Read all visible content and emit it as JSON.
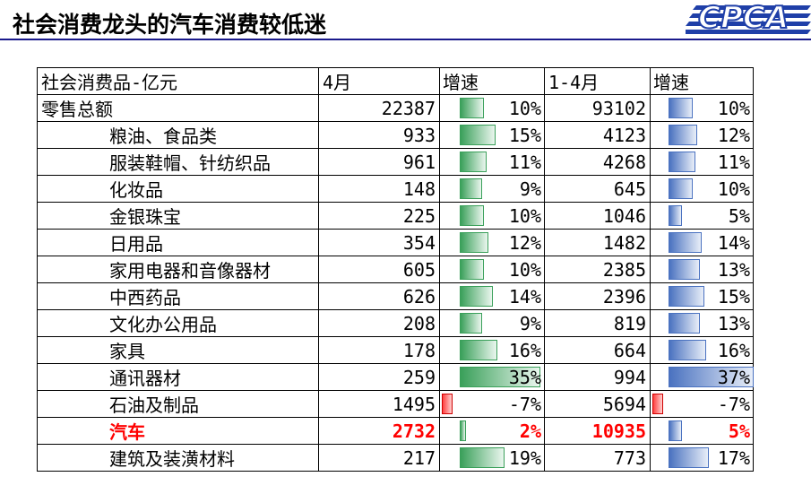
{
  "title": "社会消费龙头的汽车消费较低迷",
  "logo_text": "CPCA",
  "table": {
    "headers": [
      "社会消费品-亿元",
      "4月",
      "增速",
      "1-4月",
      "增速"
    ],
    "rows": [
      {
        "name": "零售总额",
        "apr": "22387",
        "apr_rate": "10%",
        "ytd": "93102",
        "ytd_rate": "10%",
        "apr_rate_v": 10,
        "ytd_rate_v": 10
      },
      {
        "name": "粮油、食品类",
        "apr": "933",
        "apr_rate": "15%",
        "ytd": "4123",
        "ytd_rate": "12%",
        "apr_rate_v": 15,
        "ytd_rate_v": 12
      },
      {
        "name": "服装鞋帽、针纺织品",
        "apr": "961",
        "apr_rate": "11%",
        "ytd": "4268",
        "ytd_rate": "11%",
        "apr_rate_v": 11,
        "ytd_rate_v": 11
      },
      {
        "name": "化妆品",
        "apr": "148",
        "apr_rate": "9%",
        "ytd": "645",
        "ytd_rate": "10%",
        "apr_rate_v": 9,
        "ytd_rate_v": 10
      },
      {
        "name": "金银珠宝",
        "apr": "225",
        "apr_rate": "10%",
        "ytd": "1046",
        "ytd_rate": "5%",
        "apr_rate_v": 10,
        "ytd_rate_v": 5
      },
      {
        "name": "日用品",
        "apr": "354",
        "apr_rate": "12%",
        "ytd": "1482",
        "ytd_rate": "14%",
        "apr_rate_v": 12,
        "ytd_rate_v": 14
      },
      {
        "name": "家用电器和音像器材",
        "apr": "605",
        "apr_rate": "10%",
        "ytd": "2385",
        "ytd_rate": "13%",
        "apr_rate_v": 10,
        "ytd_rate_v": 13
      },
      {
        "name": "中西药品",
        "apr": "626",
        "apr_rate": "14%",
        "ytd": "2396",
        "ytd_rate": "15%",
        "apr_rate_v": 14,
        "ytd_rate_v": 15
      },
      {
        "name": "文化办公用品",
        "apr": "208",
        "apr_rate": "9%",
        "ytd": "819",
        "ytd_rate": "13%",
        "apr_rate_v": 9,
        "ytd_rate_v": 13
      },
      {
        "name": "家具",
        "apr": "178",
        "apr_rate": "16%",
        "ytd": "664",
        "ytd_rate": "16%",
        "apr_rate_v": 16,
        "ytd_rate_v": 16
      },
      {
        "name": "通讯器材",
        "apr": "259",
        "apr_rate": "35%",
        "ytd": "994",
        "ytd_rate": "37%",
        "apr_rate_v": 35,
        "ytd_rate_v": 37
      },
      {
        "name": "石油及制品",
        "apr": "1495",
        "apr_rate": "-7%",
        "ytd": "5694",
        "ytd_rate": "-7%",
        "apr_rate_v": -7,
        "ytd_rate_v": -7
      },
      {
        "name": "汽车",
        "apr": "2732",
        "apr_rate": "2%",
        "ytd": "10935",
        "ytd_rate": "5%",
        "apr_rate_v": 2,
        "ytd_rate_v": 5,
        "highlight": true
      },
      {
        "name": "建筑及装潢材料",
        "apr": "217",
        "apr_rate": "19%",
        "ytd": "773",
        "ytd_rate": "17%",
        "apr_rate_v": 19,
        "ytd_rate_v": 17
      }
    ]
  },
  "colors": {
    "positive_bar_apr": "#3aa05a",
    "positive_bar_ytd": "#4a72c0",
    "negative_bar": "#ff0000",
    "highlight_text": "#ff0000",
    "title_rule": "#1a1a8c",
    "logo": "#1f3fa8"
  }
}
